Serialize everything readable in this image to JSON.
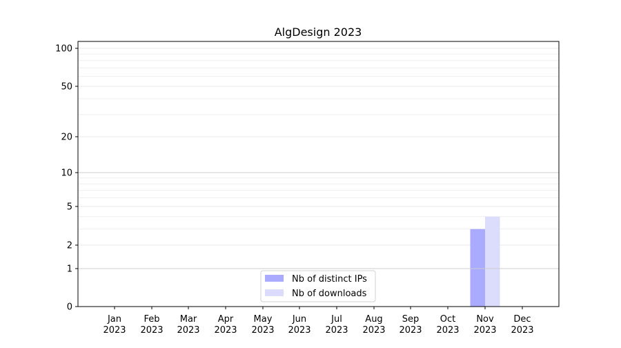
{
  "chart_data": {
    "type": "bar",
    "title": "AlgDesign 2023",
    "xlabel": "",
    "ylabel": "",
    "yscale": "symlog",
    "ylim": [
      0,
      110
    ],
    "yticks": [
      0,
      1,
      2,
      5,
      10,
      20,
      50,
      100
    ],
    "ytick_labels": [
      "0",
      "1",
      "2",
      "5",
      "10",
      "20",
      "50",
      "100"
    ],
    "categories": [
      "Jan\n2023",
      "Feb\n2023",
      "Mar\n2023",
      "Apr\n2023",
      "May\n2023",
      "Jun\n2023",
      "Jul\n2023",
      "Aug\n2023",
      "Sep\n2023",
      "Oct\n2023",
      "Nov\n2023",
      "Dec\n2023"
    ],
    "xtick_labels": [
      [
        "Jan",
        "2023"
      ],
      [
        "Feb",
        "2023"
      ],
      [
        "Mar",
        "2023"
      ],
      [
        "Apr",
        "2023"
      ],
      [
        "May",
        "2023"
      ],
      [
        "Jun",
        "2023"
      ],
      [
        "Jul",
        "2023"
      ],
      [
        "Aug",
        "2023"
      ],
      [
        "Sep",
        "2023"
      ],
      [
        "Oct",
        "2023"
      ],
      [
        "Nov",
        "2023"
      ],
      [
        "Dec",
        "2023"
      ]
    ],
    "series": [
      {
        "name": "Nb of distinct IPs",
        "color": "#aaaaff",
        "values": [
          0,
          0,
          0,
          0,
          0,
          0,
          0,
          0,
          0,
          0,
          3,
          0
        ]
      },
      {
        "name": "Nb of downloads",
        "color": "#dcdcfc",
        "values": [
          0,
          0,
          0,
          0,
          0,
          0,
          0,
          0,
          0,
          0,
          4,
          0
        ]
      }
    ],
    "grid": true,
    "legend": "lower-center"
  }
}
